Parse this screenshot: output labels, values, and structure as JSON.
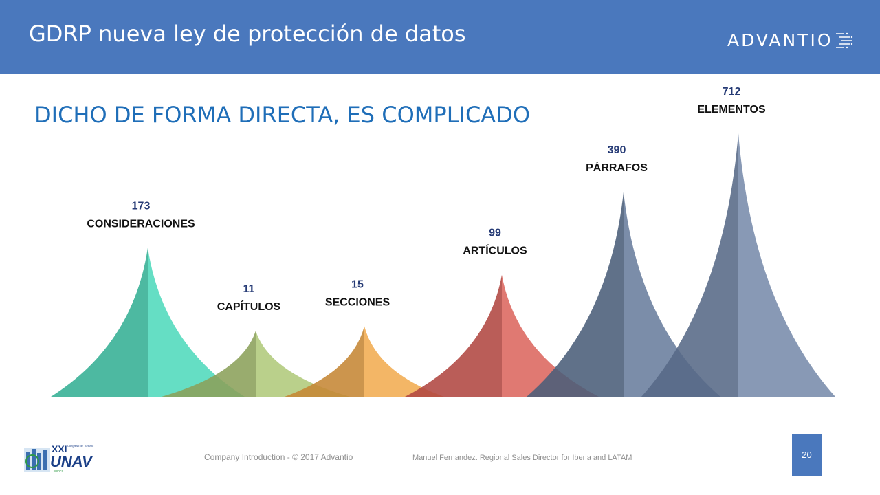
{
  "header": {
    "title": "GDRP nueva ley de protección de datos",
    "logo_text": "ADVANTIO"
  },
  "subtitle": "DICHO DE FORMA DIRECTA, ES COMPLICADO",
  "chart_data": {
    "type": "area",
    "categories": [
      "CONSIDERACIONES",
      "CAPÍTULOS",
      "SECCIONES",
      "ARTÍCULOS",
      "PÁRRAFOS",
      "ELEMENTOS"
    ],
    "values": [
      173,
      11,
      15,
      99,
      390,
      712
    ],
    "colors": [
      "#3fd6b5",
      "#a9c46e",
      "#f0a440",
      "#d8574f",
      "#5a7193",
      "#6a80a3"
    ]
  },
  "footer": {
    "company": "Company Introduction - © 2017 Advantio",
    "presenter": "Manuel Fernandez.  Regional Sales Director for Iberia and LATAM",
    "page_number": "20"
  },
  "event_logo": {
    "line1": "XXI",
    "line2": "Congreso de Turismo",
    "line3": "UNAV",
    "line4": "Cuenca"
  }
}
